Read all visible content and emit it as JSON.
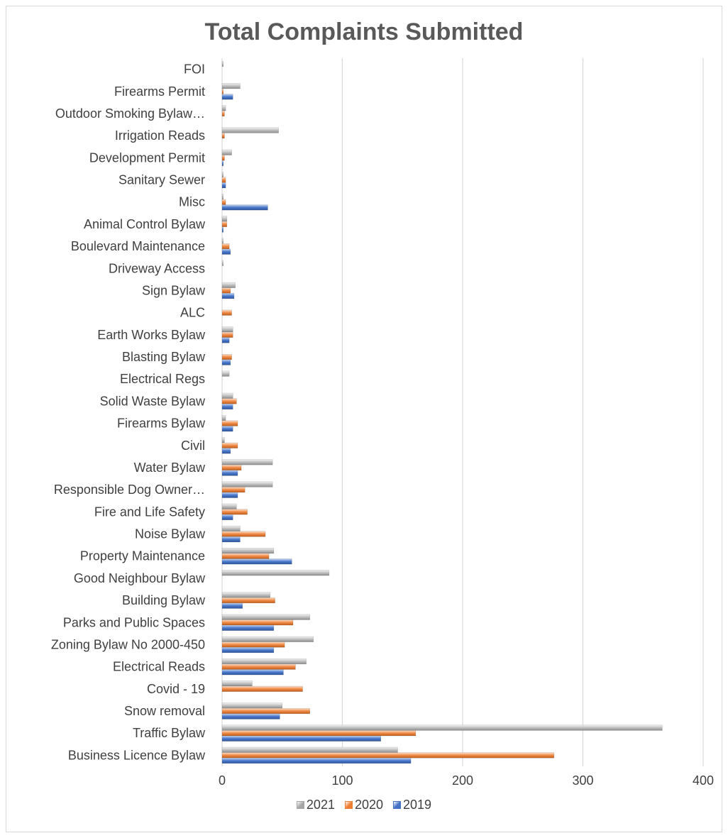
{
  "chart_data": {
    "type": "bar",
    "orientation": "horizontal",
    "title": "Total Complaints Submitted",
    "xlabel": "",
    "ylabel": "",
    "xlim": [
      0,
      400
    ],
    "x_ticks": [
      0,
      100,
      200,
      300,
      400
    ],
    "grid": "vertical",
    "legend_position": "bottom",
    "categories": [
      "Business Licence Bylaw",
      "Traffic Bylaw",
      "Snow removal",
      "Covid - 19",
      "Electrical Reads",
      "Zoning Bylaw No 2000-450",
      "Parks and Public Spaces",
      "Building Bylaw",
      "Good Neighbour Bylaw",
      "Property Maintenance",
      "Noise Bylaw",
      "Fire and Life Safety",
      "Responsible Dog Owner…",
      "Water Bylaw",
      "Civil",
      "Firearms Bylaw",
      "Solid Waste Bylaw",
      "Electrical Regs",
      "Blasting Bylaw",
      "Earth Works Bylaw",
      "ALC",
      "Sign Bylaw",
      "Driveway Access",
      "Boulevard Maintenance",
      "Animal Control Bylaw",
      "Misc",
      "Sanitary Sewer",
      "Development Permit",
      "Irrigation Reads",
      "Outdoor Smoking Bylaw…",
      "Firearms Permit",
      "FOI"
    ],
    "series": [
      {
        "name": "2021",
        "color": "#a5a5a5",
        "values": [
          146,
          366,
          50,
          25,
          70,
          76,
          73,
          40,
          89,
          43,
          15,
          12,
          42,
          42,
          2,
          3,
          9,
          6,
          0,
          9,
          0,
          11,
          1,
          1,
          4,
          1,
          1,
          8,
          47,
          3,
          15,
          1
        ]
      },
      {
        "name": "2020",
        "color": "#ed7d31",
        "values": [
          276,
          161,
          73,
          67,
          61,
          52,
          59,
          44,
          0,
          39,
          36,
          21,
          19,
          16,
          13,
          13,
          12,
          0,
          8,
          9,
          8,
          7,
          0,
          6,
          4,
          3,
          3,
          2,
          2,
          2,
          1,
          0
        ]
      },
      {
        "name": "2019",
        "color": "#4472c4",
        "values": [
          157,
          132,
          48,
          0,
          51,
          43,
          43,
          17,
          0,
          58,
          15,
          9,
          13,
          13,
          7,
          9,
          9,
          0,
          7,
          6,
          0,
          10,
          0,
          7,
          1,
          38,
          3,
          1,
          0,
          0,
          9,
          0
        ]
      }
    ]
  }
}
